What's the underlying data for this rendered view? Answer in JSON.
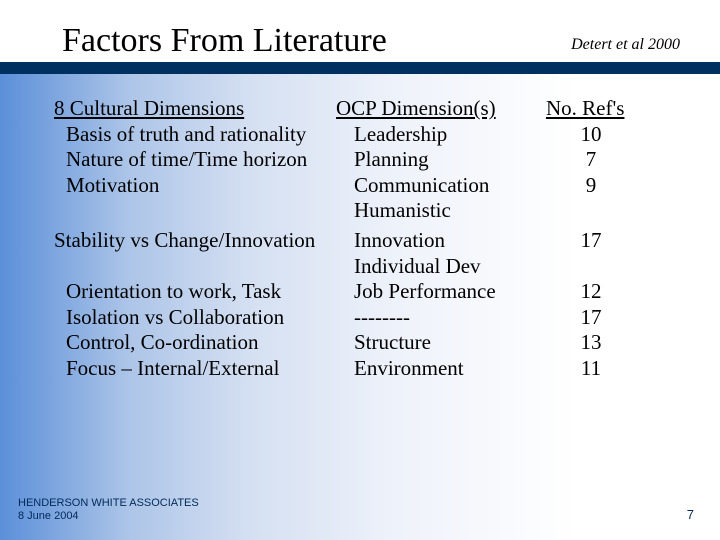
{
  "title": "Factors From Literature",
  "citation": "Detert et al 2000",
  "headers": {
    "col1": "8 Cultural Dimensions",
    "col2": "OCP Dimension(s)",
    "col3": "No. Ref's"
  },
  "rows": [
    {
      "col1": "Basis of truth and rationality",
      "col2": "Leadership",
      "col3": "10"
    },
    {
      "col1": "Nature of time/Time horizon",
      "col2": "Planning",
      "col3": "7"
    },
    {
      "col1": "Motivation",
      "col2": "Communication",
      "col3": "9"
    },
    {
      "col1": "",
      "col2": "Humanistic",
      "col3": ""
    },
    {
      "col1": "Stability vs Change/Innovation",
      "col2": "Innovation",
      "col3": "17",
      "noindent1": true
    },
    {
      "col1": "",
      "col2": "Individual Dev",
      "col3": ""
    },
    {
      "col1": "Orientation to work, Task",
      "col2": "Job Performance",
      "col3": "12"
    },
    {
      "col1": "Isolation vs Collaboration",
      "col2": "--------",
      "col3": "17"
    },
    {
      "col1": "Control, Co-ordination",
      "col2": "Structure",
      "col3": "13"
    },
    {
      "col1": "Focus – Internal/External",
      "col2": "Environment",
      "col3": "11"
    }
  ],
  "footer": {
    "line1": "HENDERSON WHITE ASSOCIATES",
    "line2": "8 June 2004"
  },
  "page_number": "7",
  "colors": {
    "dark_band": "#003060",
    "footer_text": "#002a5a"
  }
}
